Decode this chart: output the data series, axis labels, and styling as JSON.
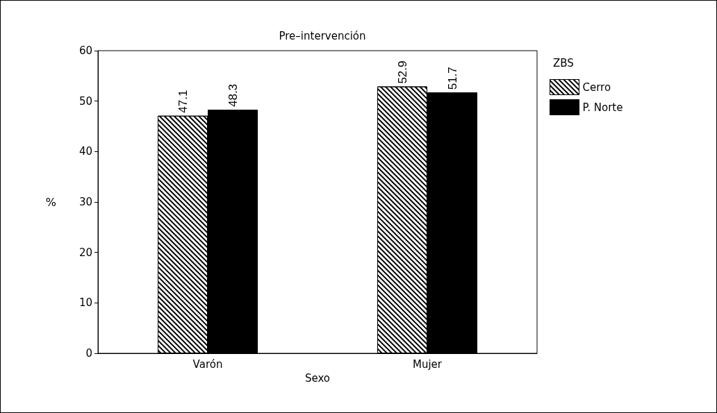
{
  "chart_data": {
    "type": "bar",
    "title": "Pre–intervención",
    "xlabel": "Sexo",
    "ylabel": "%",
    "legend_title": "ZBS",
    "categories": [
      "Varón",
      "Mujer"
    ],
    "series": [
      {
        "name": "Cerro",
        "color": "#ffffff",
        "values": [
          47.1,
          52.9
        ]
      },
      {
        "name": "P. Norte",
        "color": "#000000",
        "values": [
          48.3,
          51.7
        ]
      }
    ],
    "ylim": [
      0,
      60
    ],
    "yticks": [
      0,
      10,
      20,
      30,
      40,
      50,
      60
    ],
    "grid": false,
    "legend": "top right",
    "data_labels": true
  }
}
